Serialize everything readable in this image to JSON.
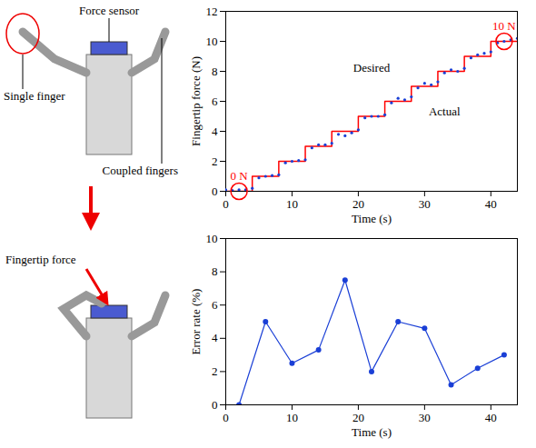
{
  "chart_data": [
    {
      "type": "line",
      "x_label": "Time (s)",
      "y_label": "Fingertip force (N)",
      "xlim": [
        0,
        44
      ],
      "ylim": [
        0,
        12
      ],
      "xticks": [
        0,
        10,
        20,
        30,
        40
      ],
      "yticks": [
        0,
        2,
        4,
        6,
        8,
        10,
        12
      ],
      "grid": false,
      "series": [
        {
          "name": "Desired",
          "color": "#ff0000",
          "line_style": "step",
          "x": [
            0,
            4,
            8,
            12,
            16,
            20,
            24,
            28,
            32,
            36,
            40
          ],
          "values": [
            0,
            1,
            2,
            3,
            4,
            5,
            6,
            7,
            8,
            9,
            10
          ]
        },
        {
          "name": "Actual",
          "color": "#1a3fd6",
          "type": "scatter",
          "marker": "dot",
          "x": [
            0,
            1,
            2,
            3,
            4,
            5,
            6,
            7,
            8,
            9,
            10,
            11,
            12,
            13,
            14,
            15,
            16,
            17,
            18,
            19,
            20,
            21,
            22,
            23,
            24,
            25,
            26,
            27,
            28,
            29,
            30,
            31,
            32,
            33,
            34,
            35,
            36,
            37,
            38,
            39,
            40,
            41,
            42,
            43,
            44
          ],
          "values": [
            0.1,
            0.05,
            0.1,
            0.1,
            0.2,
            0.9,
            1.0,
            1.05,
            1.1,
            1.9,
            2.0,
            2.05,
            2.1,
            2.9,
            3.1,
            3.1,
            3.2,
            3.8,
            3.7,
            3.9,
            4.1,
            4.9,
            5.0,
            5.0,
            5.1,
            5.9,
            6.2,
            6.1,
            6.3,
            6.9,
            7.2,
            7.1,
            7.3,
            7.9,
            8.1,
            8.0,
            8.2,
            8.9,
            9.1,
            9.2,
            9.3,
            9.9,
            10.0,
            10.1,
            10.2
          ]
        }
      ],
      "annotations": [
        {
          "text": "Desired",
          "x": 22,
          "y": 8.2
        },
        {
          "text": "Actual",
          "x": 33,
          "y": 5.3
        },
        {
          "text": "0 N",
          "x": 2,
          "y": 0,
          "marker": "circle",
          "color": "#ff0000"
        },
        {
          "text": "10 N",
          "x": 42,
          "y": 10,
          "marker": "circle",
          "color": "#ff0000"
        }
      ]
    },
    {
      "type": "line",
      "x_label": "Time (s)",
      "y_label": "Error rate (%)",
      "xlim": [
        0,
        44
      ],
      "ylim": [
        0,
        10
      ],
      "xticks": [
        0,
        10,
        20,
        30,
        40
      ],
      "yticks": [
        0,
        2,
        4,
        6,
        8,
        10
      ],
      "grid": false,
      "series": [
        {
          "name": "Error rate",
          "color": "#1a3fd6",
          "marker": "dot",
          "x": [
            2,
            6,
            10,
            14,
            18,
            22,
            26,
            30,
            34,
            38,
            42
          ],
          "values": [
            0,
            5,
            2.5,
            3.3,
            7.5,
            2,
            5,
            4.6,
            1.2,
            2.2,
            3
          ]
        }
      ]
    }
  ],
  "photo_labels": {
    "top": [
      "Force sensor",
      "Single finger",
      "Coupled fingers"
    ],
    "bottom": [
      "Fingertip force"
    ]
  }
}
